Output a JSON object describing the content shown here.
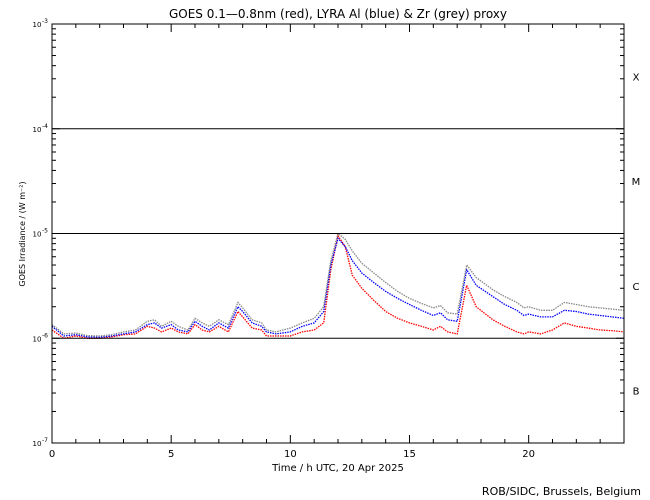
{
  "chart_data": {
    "type": "line",
    "title": "GOES 0.1—0.8nm (red), LYRA Al (blue) & Zr (grey) proxy",
    "xlabel": "Time / h UTC, 20 Apr 2025",
    "ylabel": "GOES Irradiance / (W m⁻²)",
    "y_scale": "log",
    "xlim": [
      0,
      24
    ],
    "ylim": [
      1e-07,
      0.001
    ],
    "x_ticks": [
      {
        "value": 0,
        "label": "0"
      },
      {
        "value": 5,
        "label": "5"
      },
      {
        "value": 10,
        "label": "10"
      },
      {
        "value": 15,
        "label": "15"
      },
      {
        "value": 20,
        "label": "20"
      }
    ],
    "y_ticks": [
      {
        "value": 0.001,
        "base": "10",
        "exp": "-3"
      },
      {
        "value": 0.0001,
        "base": "10",
        "exp": "-4"
      },
      {
        "value": 1e-05,
        "base": "10",
        "exp": "-5"
      },
      {
        "value": 1e-06,
        "base": "10",
        "exp": "-6"
      },
      {
        "value": 1e-07,
        "base": "10",
        "exp": "-7"
      }
    ],
    "class_lines": [
      0.0001,
      1e-05,
      1e-06
    ],
    "flare_classes": [
      {
        "label": "X",
        "center": 0.000316
      },
      {
        "label": "M",
        "center": 3.16e-05
      },
      {
        "label": "C",
        "center": 3.16e-06
      },
      {
        "label": "B",
        "center": 3.16e-07
      }
    ],
    "x": [
      0,
      0.5,
      1,
      1.5,
      2,
      2.5,
      3,
      3.5,
      4,
      4.3,
      4.6,
      5,
      5.3,
      5.7,
      6,
      6.3,
      6.6,
      7,
      7.4,
      7.8,
      8,
      8.4,
      8.8,
      9,
      9.4,
      10,
      10.5,
      11,
      11.4,
      11.7,
      12,
      12.3,
      12.6,
      13,
      13.5,
      14,
      14.5,
      15,
      15.5,
      16,
      16.3,
      16.6,
      17,
      17.4,
      17.8,
      18.5,
      19,
      19.5,
      19.8,
      20,
      20.5,
      21,
      21.5,
      22,
      22.5,
      23,
      23.5,
      24
    ],
    "series": [
      {
        "color": "#ff0000",
        "values": [
          1.2e-06,
          1e-06,
          1.05e-06,
          1e-06,
          1e-06,
          1.03e-06,
          1.08e-06,
          1.1e-06,
          1.3e-06,
          1.25e-06,
          1.15e-06,
          1.25e-06,
          1.15e-06,
          1.1e-06,
          1.35e-06,
          1.2e-06,
          1.15e-06,
          1.3e-06,
          1.15e-06,
          1.8e-06,
          1.6e-06,
          1.25e-06,
          1.2e-06,
          1.05e-06,
          1.05e-06,
          1.05e-06,
          1.15e-06,
          1.2e-06,
          1.4e-06,
          4.5e-06,
          9.5e-06,
          7.5e-06,
          4e-06,
          3e-06,
          2.3e-06,
          1.8e-06,
          1.55e-06,
          1.4e-06,
          1.3e-06,
          1.2e-06,
          1.3e-06,
          1.15e-06,
          1.1e-06,
          3.2e-06,
          2e-06,
          1.5e-06,
          1.3e-06,
          1.15e-06,
          1.1e-06,
          1.15e-06,
          1.1e-06,
          1.2e-06,
          1.4e-06,
          1.3e-06,
          1.25e-06,
          1.2e-06,
          1.18e-06,
          1.15e-06
        ]
      },
      {
        "color": "#0000ff",
        "values": [
          1.3e-06,
          1.05e-06,
          1.08e-06,
          1.03e-06,
          1.02e-06,
          1.05e-06,
          1.1e-06,
          1.15e-06,
          1.35e-06,
          1.4e-06,
          1.25e-06,
          1.35e-06,
          1.2e-06,
          1.15e-06,
          1.45e-06,
          1.3e-06,
          1.2e-06,
          1.4e-06,
          1.25e-06,
          2e-06,
          1.8e-06,
          1.4e-06,
          1.3e-06,
          1.15e-06,
          1.1e-06,
          1.15e-06,
          1.3e-06,
          1.4e-06,
          1.8e-06,
          5e-06,
          9e-06,
          7.5e-06,
          5.5e-06,
          4.2e-06,
          3.4e-06,
          2.8e-06,
          2.4e-06,
          2.1e-06,
          1.85e-06,
          1.65e-06,
          1.75e-06,
          1.5e-06,
          1.45e-06,
          4.5e-06,
          3.2e-06,
          2.5e-06,
          2.1e-06,
          1.85e-06,
          1.65e-06,
          1.7e-06,
          1.6e-06,
          1.6e-06,
          1.85e-06,
          1.8e-06,
          1.7e-06,
          1.65e-06,
          1.6e-06,
          1.55e-06
        ]
      },
      {
        "color": "#888888",
        "values": [
          1.35e-06,
          1.1e-06,
          1.12e-06,
          1.06e-06,
          1.05e-06,
          1.08e-06,
          1.15e-06,
          1.2e-06,
          1.45e-06,
          1.5e-06,
          1.3e-06,
          1.45e-06,
          1.3e-06,
          1.2e-06,
          1.55e-06,
          1.4e-06,
          1.3e-06,
          1.5e-06,
          1.35e-06,
          2.2e-06,
          1.95e-06,
          1.5e-06,
          1.4e-06,
          1.2e-06,
          1.15e-06,
          1.25e-06,
          1.4e-06,
          1.55e-06,
          2e-06,
          5.5e-06,
          1e-05,
          8.8e-06,
          6.8e-06,
          5.2e-06,
          4.2e-06,
          3.4e-06,
          2.8e-06,
          2.4e-06,
          2.15e-06,
          1.95e-06,
          2.05e-06,
          1.75e-06,
          1.7e-06,
          5e-06,
          3.8e-06,
          2.9e-06,
          2.5e-06,
          2.2e-06,
          1.95e-06,
          2e-06,
          1.85e-06,
          1.85e-06,
          2.2e-06,
          2.1e-06,
          2e-06,
          1.95e-06,
          1.9e-06,
          1.85e-06
        ]
      }
    ]
  },
  "credit": "ROB/SIDC, Brussels, Belgium"
}
